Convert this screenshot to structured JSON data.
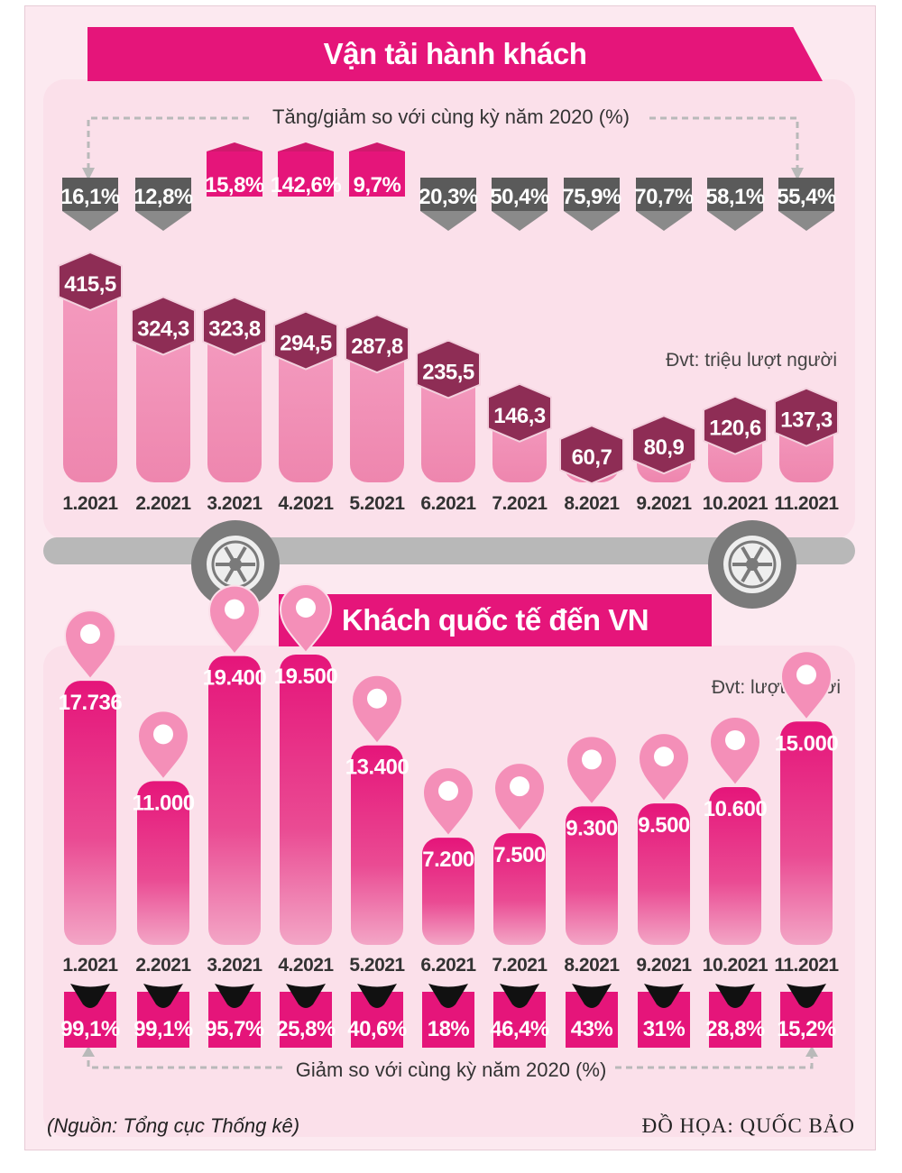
{
  "passenger": {
    "title": "Vận tải hành khách",
    "change_caption": "Tăng/giảm so với cùng kỳ năm 2020 (%)",
    "unit": "Đvt: triệu lượt người"
  },
  "visitors": {
    "title": "Khách quốc tế đến VN",
    "unit": "Đvt: lượt người",
    "change_caption": "Giảm so với cùng kỳ năm 2020 (%)"
  },
  "footer": {
    "source": "(Nguồn: Tổng cục Thống kê)",
    "credit": "ĐỒ HỌA: QUỐC BẢO"
  },
  "colors": {
    "magenta": "#e5157a",
    "pink_bar": "#f08fb5",
    "maroon_badge": "#8e2d55",
    "grey_badge": "#58595b",
    "grey_outline": "#b9b9b9"
  },
  "chart_data": [
    {
      "type": "bar",
      "title": "Vận tải hành khách",
      "ylabel": "Đvt: triệu lượt người",
      "ylim": [
        0,
        450
      ],
      "categories": [
        "1.2021",
        "2.2021",
        "3.2021",
        "4.2021",
        "5.2021",
        "6.2021",
        "7.2021",
        "8.2021",
        "9.2021",
        "10.2021",
        "11.2021"
      ],
      "value_labels": [
        "415,5",
        "324,3",
        "323,8",
        "294,5",
        "287,8",
        "235,5",
        "146,3",
        "60,7",
        "80,9",
        "120,6",
        "137,3"
      ],
      "values": [
        415.5,
        324.3,
        323.8,
        294.5,
        287.8,
        235.5,
        146.3,
        60.7,
        80.9,
        120.6,
        137.3
      ],
      "change_caption": "Tăng/giảm so với cùng kỳ năm 2020 (%)",
      "change_labels": [
        "16,1%",
        "12,8%",
        "15,8%",
        "142,6%",
        "9,7%",
        "20,3%",
        "50,4%",
        "75,9%",
        "70,7%",
        "58,1%",
        "55,4%"
      ],
      "change_values": [
        -16.1,
        -12.8,
        15.8,
        142.6,
        9.7,
        -20.3,
        -50.4,
        -75.9,
        -70.7,
        -58.1,
        -55.4
      ]
    },
    {
      "type": "bar",
      "title": "Khách quốc tế đến VN",
      "ylabel": "Đvt: lượt người",
      "ylim": [
        0,
        20000
      ],
      "categories": [
        "1.2021",
        "2.2021",
        "3.2021",
        "4.2021",
        "5.2021",
        "6.2021",
        "7.2021",
        "8.2021",
        "9.2021",
        "10.2021",
        "11.2021"
      ],
      "value_labels": [
        "17.736",
        "11.000",
        "19.400",
        "19.500",
        "13.400",
        "7.200",
        "7.500",
        "9.300",
        "9.500",
        "10.600",
        "15.000"
      ],
      "values": [
        17736,
        11000,
        19400,
        19500,
        13400,
        7200,
        7500,
        9300,
        9500,
        10600,
        15000
      ],
      "change_caption": "Giảm so với cùng kỳ năm 2020 (%)",
      "change_labels": [
        "99,1%",
        "99,1%",
        "95,7%",
        "25,8%",
        "40,6%",
        "18%",
        "46,4%",
        "43%",
        "31%",
        "28,8%",
        "15,2%"
      ],
      "change_values": [
        -99.1,
        -99.1,
        -95.7,
        -25.8,
        -40.6,
        -18,
        -46.4,
        -43,
        -31,
        -28.8,
        -15.2
      ]
    }
  ]
}
